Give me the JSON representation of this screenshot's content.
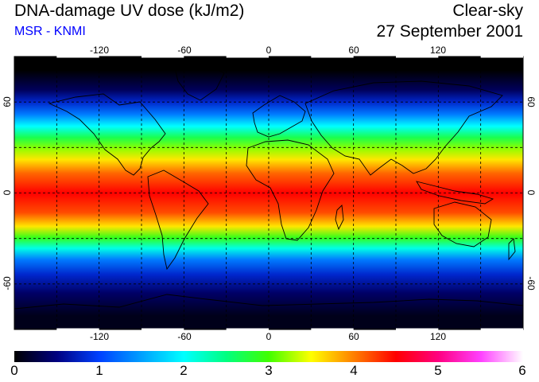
{
  "header": {
    "title": "DNA-damage UV dose (kJ/m2)",
    "source": "MSR - KNMI",
    "sky_condition": "Clear-sky",
    "date": "27 September 2001",
    "source_color": "#0000ff"
  },
  "map": {
    "projection": "equirectangular",
    "lon_range": [
      -180,
      180
    ],
    "lat_range": [
      -90,
      90
    ],
    "grid": "dashed every 30 degrees",
    "lon_tick_labels": [
      "-120",
      "-60",
      "0",
      "60",
      "120"
    ],
    "lat_tick_labels_left": [
      "60",
      "0",
      "-60"
    ],
    "lat_tick_labels_right": [
      "60",
      "0",
      "-60"
    ],
    "dose_bands": [
      {
        "lat_from": 90,
        "lat_to": 72,
        "value": 0.0
      },
      {
        "lat_from": 72,
        "lat_to": 64,
        "value": 0.35
      },
      {
        "lat_from": 64,
        "lat_to": 56,
        "value": 0.8
      },
      {
        "lat_from": 56,
        "lat_to": 48,
        "value": 1.3
      },
      {
        "lat_from": 48,
        "lat_to": 40,
        "value": 2.0
      },
      {
        "lat_from": 40,
        "lat_to": 33,
        "value": 2.7
      },
      {
        "lat_from": 33,
        "lat_to": 26,
        "value": 3.2
      },
      {
        "lat_from": 26,
        "lat_to": 18,
        "value": 3.6
      },
      {
        "lat_from": 18,
        "lat_to": 8,
        "value": 4.1
      },
      {
        "lat_from": 8,
        "lat_to": -8,
        "value": 4.5
      },
      {
        "lat_from": -8,
        "lat_to": -18,
        "value": 4.2
      },
      {
        "lat_from": -18,
        "lat_to": -26,
        "value": 3.6
      },
      {
        "lat_from": -26,
        "lat_to": -33,
        "value": 2.9
      },
      {
        "lat_from": -33,
        "lat_to": -40,
        "value": 2.1
      },
      {
        "lat_from": -40,
        "lat_to": -48,
        "value": 1.3
      },
      {
        "lat_from": -48,
        "lat_to": -60,
        "value": 0.8
      },
      {
        "lat_from": -60,
        "lat_to": -72,
        "value": 0.4
      },
      {
        "lat_from": -72,
        "lat_to": -90,
        "value": 0.1
      }
    ]
  },
  "colorbar": {
    "min": 0,
    "max": 6,
    "tick_labels": [
      "0",
      "1",
      "2",
      "3",
      "4",
      "5",
      "6"
    ],
    "stops": [
      {
        "value": 0.0,
        "color": "#000000"
      },
      {
        "value": 0.5,
        "color": "#000080"
      },
      {
        "value": 1.0,
        "color": "#0040ff"
      },
      {
        "value": 1.5,
        "color": "#00a0ff"
      },
      {
        "value": 2.0,
        "color": "#00ffff"
      },
      {
        "value": 2.5,
        "color": "#00ff80"
      },
      {
        "value": 3.0,
        "color": "#40ff00"
      },
      {
        "value": 3.5,
        "color": "#ffff00"
      },
      {
        "value": 4.0,
        "color": "#ff8000"
      },
      {
        "value": 4.5,
        "color": "#ff0000"
      },
      {
        "value": 5.0,
        "color": "#ff0080"
      },
      {
        "value": 5.5,
        "color": "#ff40ff"
      },
      {
        "value": 6.0,
        "color": "#ffffff"
      }
    ]
  }
}
